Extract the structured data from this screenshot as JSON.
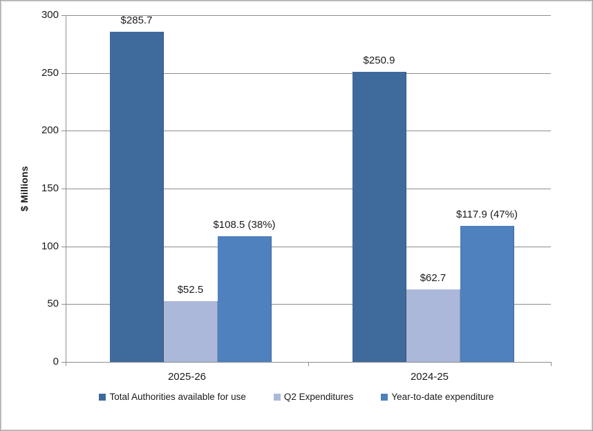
{
  "window": {
    "background": "#FFFFFF",
    "border_color": "#9D9D9D"
  },
  "chart_data": {
    "type": "bar",
    "title": "",
    "xlabel": "",
    "ylabel": "$ Millions",
    "ylim": [
      0,
      300
    ],
    "ytick_interval": 50,
    "yticks": [
      0,
      50,
      100,
      150,
      200,
      250,
      300
    ],
    "grid": "horizontal",
    "legend_position": "bottom",
    "categories": [
      "2025-26",
      "2024-25"
    ],
    "series": [
      {
        "name": "Total Authorities available for use",
        "color": "#3F6A9C",
        "values": [
          285.7,
          250.9
        ],
        "labels": [
          "$285.7",
          "$250.9"
        ]
      },
      {
        "name": "Q2 Expenditures",
        "color": "#ABB8D9",
        "values": [
          52.5,
          62.7
        ],
        "labels": [
          "$52.5",
          "$62.7"
        ]
      },
      {
        "name": "Year-to-date expenditure",
        "color": "#4E81BD",
        "values": [
          108.5,
          117.9
        ],
        "labels": [
          "$108.5 (38%)",
          "$117.9 (47%)"
        ]
      }
    ],
    "colors": {
      "gridline": "#8C8C8C",
      "axis": "#8C8C8C",
      "text": "#1A1A1A"
    }
  }
}
